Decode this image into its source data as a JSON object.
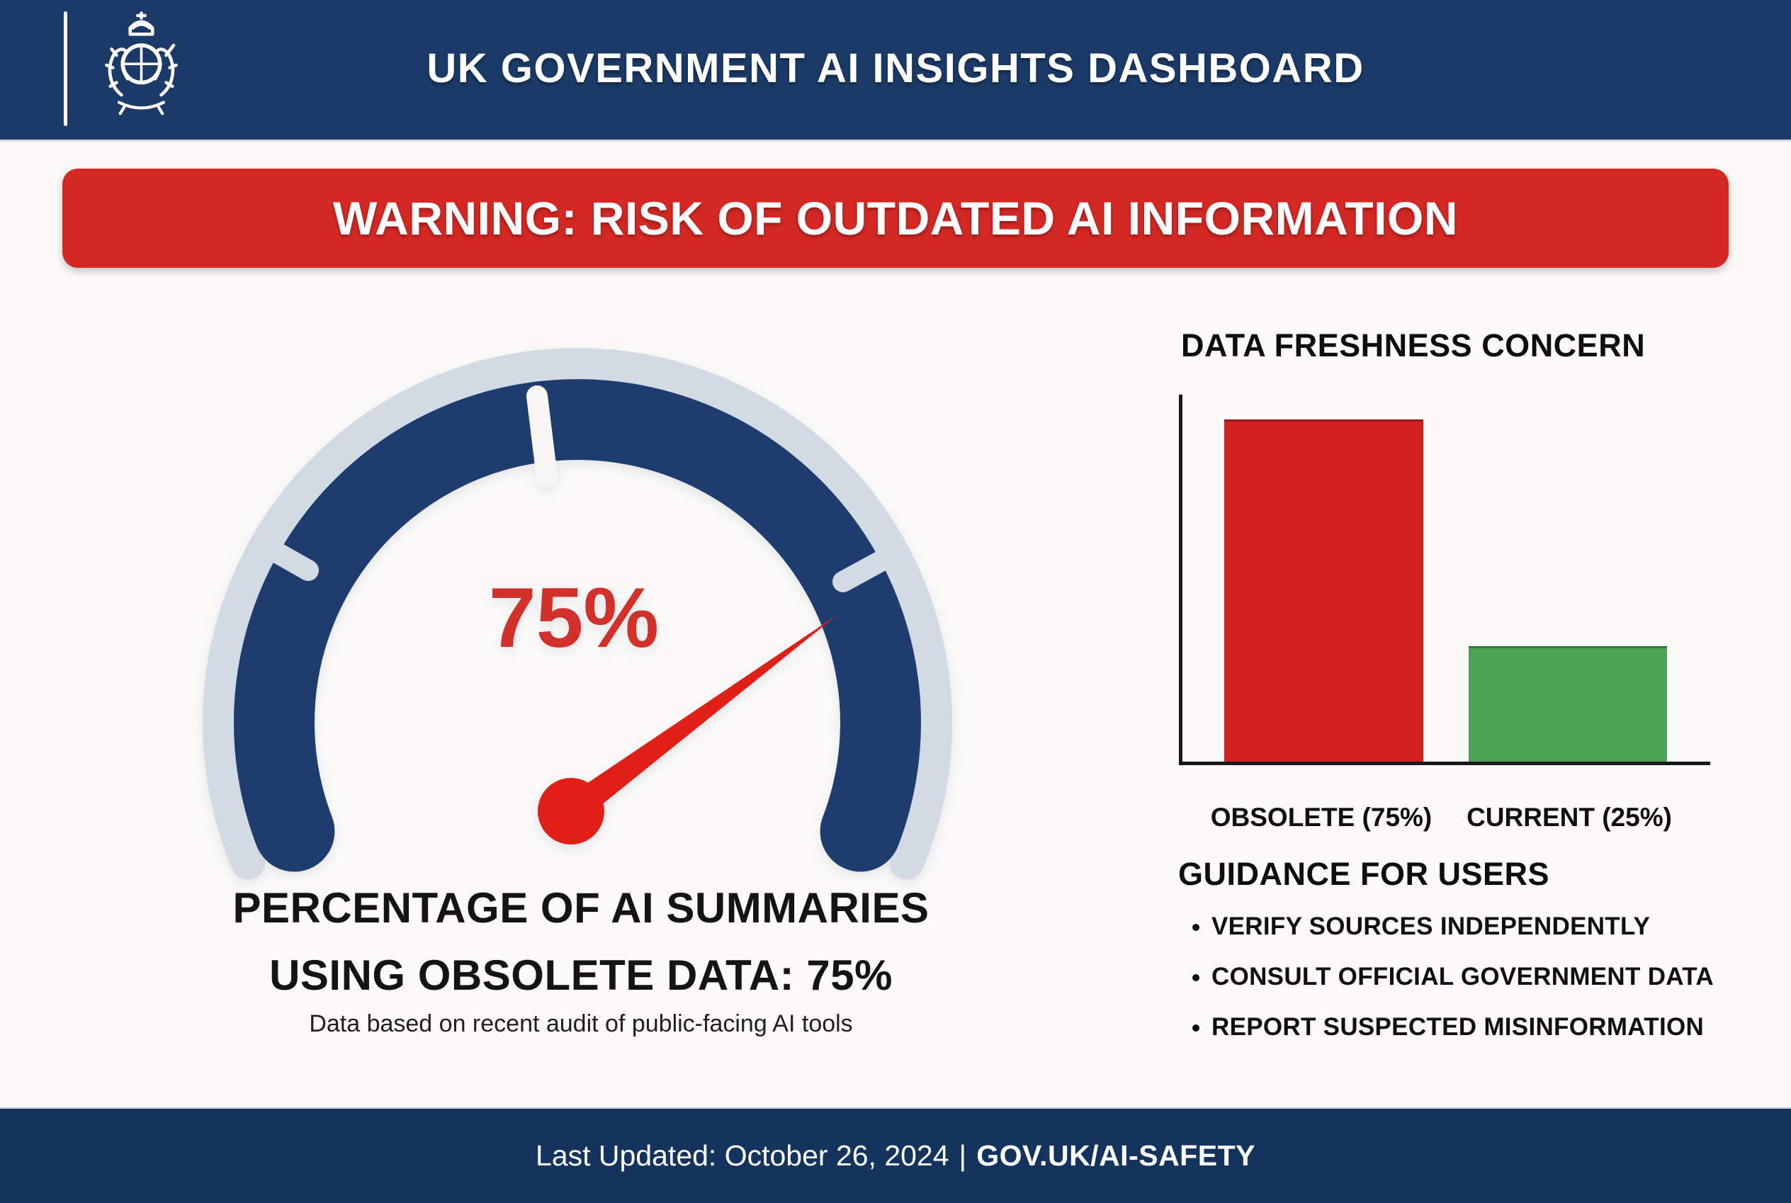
{
  "colors": {
    "navy_header": "#1b3a67",
    "navy_footer": "#14345d",
    "navy_gauge": "#1e3c6e",
    "rim_gray": "#d2dbe3",
    "warning_red": "#d32824",
    "needle_red": "#e02018",
    "bar_red": "#d42020",
    "bar_green": "#4ba455"
  },
  "header": {
    "title": "UK GOVERNMENT AI INSIGHTS DASHBOARD",
    "logo_icon": "royal-crest-icon"
  },
  "warning": {
    "text": "WARNING: RISK OF OUTDATED AI INFORMATION"
  },
  "gauge_section": {
    "value_label": "75%",
    "caption_line1": "PERCENTAGE OF AI SUMMARIES",
    "caption_line2": "USING OBSOLETE DATA: 75%",
    "subtext": "Data based on recent audit of public-facing AI tools"
  },
  "chart_section": {
    "title": "DATA FRESHNESS CONCERN",
    "x_labels": [
      "OBSOLETE (75%)",
      "CURRENT (25%)"
    ]
  },
  "guidance": {
    "heading": "GUIDANCE FOR USERS",
    "items": [
      "VERIFY SOURCES INDEPENDENTLY",
      "CONSULT OFFICIAL GOVERNMENT DATA",
      "REPORT SUSPECTED MISINFORMATION"
    ]
  },
  "footer": {
    "last_updated": "Last Updated: October 26, 2024",
    "separator": "|",
    "link": "GOV.UK/AI-SAFETY"
  },
  "chart_data": [
    {
      "type": "gauge",
      "title": "PERCENTAGE OF AI SUMMARIES USING OBSOLETE DATA",
      "value": 75,
      "min": 0,
      "max": 100,
      "value_label": "75%",
      "arc_color": "#1e3c6e",
      "rim_color": "#d2dbe3",
      "needle_color": "#e02018"
    },
    {
      "type": "bar",
      "title": "DATA FRESHNESS CONCERN",
      "categories": [
        "OBSOLETE",
        "CURRENT"
      ],
      "values": [
        75,
        25
      ],
      "tick_labels": [
        "OBSOLETE (75%)",
        "CURRENT (25%)"
      ],
      "colors": [
        "#d42020",
        "#4ba455"
      ],
      "ylabel": "",
      "xlabel": "",
      "ylim": [
        0,
        100
      ],
      "grid": false,
      "legend_position": "none"
    }
  ]
}
